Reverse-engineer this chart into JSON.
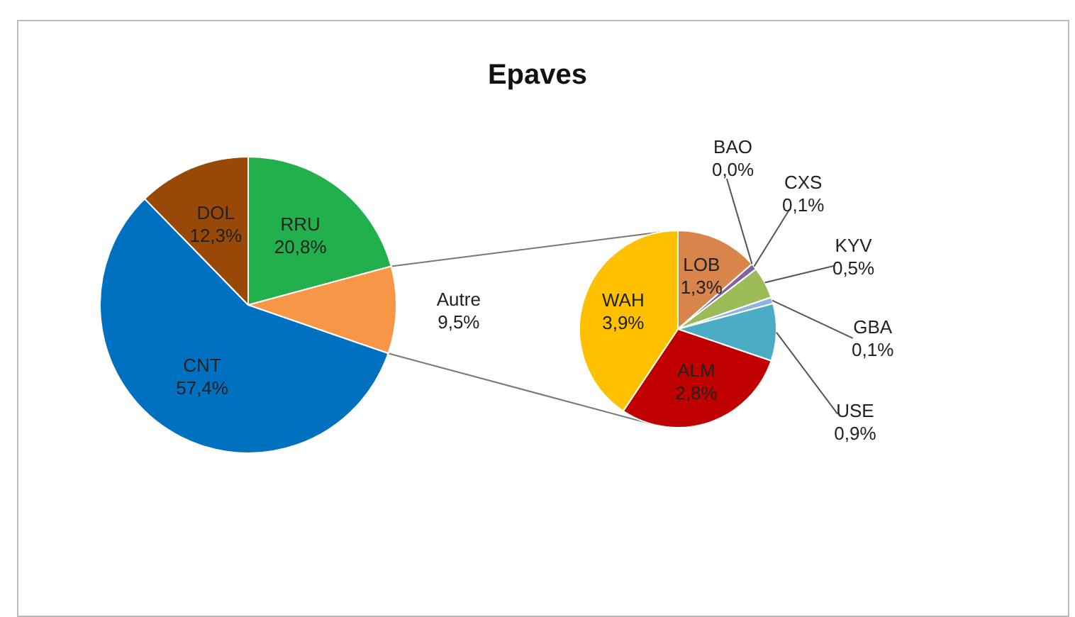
{
  "chart_data": [
    {
      "type": "pie",
      "title": "Epaves",
      "categories": [
        "RRU",
        "Autre",
        "CNT",
        "DOL"
      ],
      "values": [
        20.8,
        9.5,
        57.4,
        12.3
      ],
      "colors": [
        "#21b04b",
        "#f79646",
        "#0070c0",
        "#984807"
      ],
      "value_labels": [
        "20,8%",
        "9,5%",
        "57,4%",
        "12,3%"
      ]
    },
    {
      "type": "pie",
      "categories": [
        "LOB",
        "BAO",
        "CXS",
        "KYV",
        "GBA",
        "USE",
        "ALM",
        "WAH"
      ],
      "values": [
        1.3,
        0.0,
        0.1,
        0.5,
        0.1,
        0.9,
        2.8,
        3.9
      ],
      "colors": [
        "#d9844b",
        "#c0504d",
        "#8064a2",
        "#9bbb59",
        "#8db3e2",
        "#4bacc6",
        "#c00000",
        "#ffc000"
      ],
      "value_labels": [
        "1,3%",
        "0,0%",
        "0,1%",
        "0,5%",
        "0,1%",
        "0,9%",
        "2,8%",
        "3,9%"
      ]
    }
  ]
}
